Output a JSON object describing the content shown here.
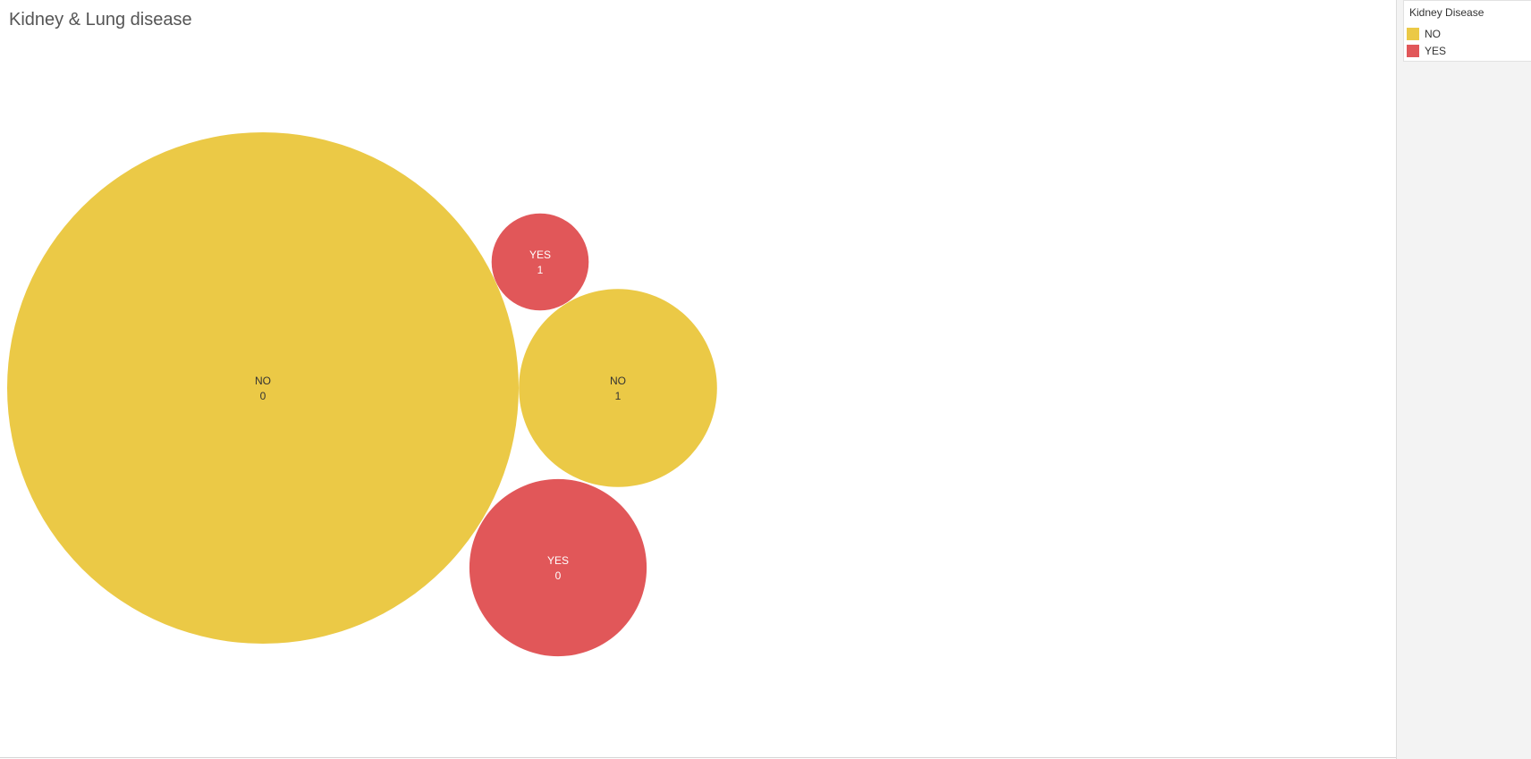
{
  "title": "Kidney & Lung disease",
  "legend": {
    "title": "Kidney Disease",
    "items": [
      {
        "label": "NO",
        "color": "#EBC946"
      },
      {
        "label": "YES",
        "color": "#E15759"
      }
    ]
  },
  "chart_data": {
    "type": "bubble",
    "title": "Kidney & Lung disease",
    "color_field": "Kidney Disease",
    "size_encoding": "record count (relative, estimated from bubble area)",
    "bubbles": [
      {
        "kidney_disease": "NO",
        "lung_disease": "0",
        "relative_size": 100
      },
      {
        "kidney_disease": "NO",
        "lung_disease": "1",
        "relative_size": 15
      },
      {
        "kidney_disease": "YES",
        "lung_disease": "0",
        "relative_size": 12
      },
      {
        "kidney_disease": "YES",
        "lung_disease": "1",
        "relative_size": 3.6
      }
    ]
  }
}
